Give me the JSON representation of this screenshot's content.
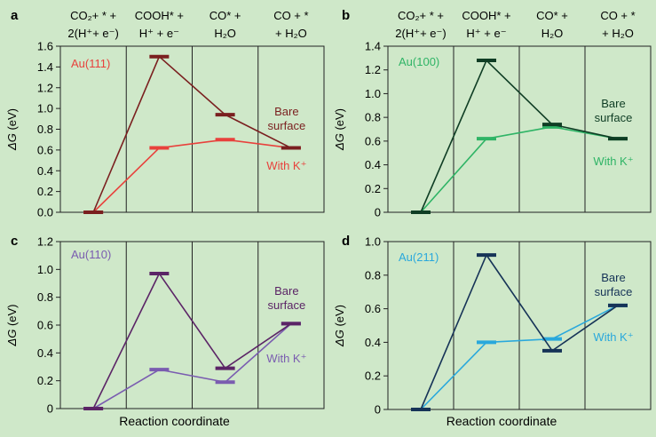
{
  "figure": {
    "step_headers": [
      {
        "line1": "CO₂+ * +",
        "line2": "2(H⁺+ e⁻)"
      },
      {
        "line1": "COOH* +",
        "line2": "H⁺ + e⁻"
      },
      {
        "line1": "CO* +",
        "line2": "H₂O"
      },
      {
        "line1": "CO + *",
        "line2": "+ H₂O"
      }
    ],
    "xlabel": "Reaction coordinate",
    "ylabel": "ΔG (eV)",
    "bare_label_line1": "Bare",
    "bare_label_line2": "surface",
    "k_label": "With K⁺"
  },
  "chart_data": [
    {
      "type": "line",
      "panel_letter": "a",
      "title": "Au(111)",
      "categories": [
        "CO₂ + * + 2(H⁺ + e⁻)",
        "COOH* + H⁺ + e⁻",
        "CO* + H₂O",
        "CO + * + H₂O"
      ],
      "ylim": [
        0,
        1.6
      ],
      "yticks": [
        0,
        0.2,
        0.4,
        0.6,
        0.8,
        1.0,
        1.2,
        1.4,
        1.6
      ],
      "ytick_labels": [
        "0.0",
        "0.2",
        "0.4",
        "0.6",
        "0.8",
        "1.0",
        "1.2",
        "1.4",
        "1.6"
      ],
      "series": [
        {
          "name": "Bare surface",
          "values": [
            0,
            1.5,
            0.94,
            0.62
          ],
          "color": "#7a1f1f"
        },
        {
          "name": "With K⁺",
          "values": [
            0,
            0.62,
            0.7,
            0.62
          ],
          "color": "#e8413c"
        }
      ],
      "title_color": "#e8413c"
    },
    {
      "type": "line",
      "panel_letter": "b",
      "title": "Au(100)",
      "categories": [
        "CO₂ + * + 2(H⁺ + e⁻)",
        "COOH* + H⁺ + e⁻",
        "CO* + H₂O",
        "CO + * + H₂O"
      ],
      "ylim": [
        0,
        1.4
      ],
      "yticks": [
        0,
        0.2,
        0.4,
        0.6,
        0.8,
        1.0,
        1.2,
        1.4
      ],
      "ytick_labels": [
        "0",
        "0.2",
        "0.4",
        "0.6",
        "0.8",
        "1.0",
        "1.2",
        "1.4"
      ],
      "series": [
        {
          "name": "Bare surface",
          "values": [
            0,
            1.28,
            0.74,
            0.62
          ],
          "color": "#0f3d24"
        },
        {
          "name": "With K⁺",
          "values": [
            0,
            0.62,
            0.72,
            0.62
          ],
          "color": "#2fb466"
        }
      ],
      "title_color": "#2fb466"
    },
    {
      "type": "line",
      "panel_letter": "c",
      "title": "Au(110)",
      "categories": [
        "CO₂ + * + 2(H⁺ + e⁻)",
        "COOH* + H⁺ + e⁻",
        "CO* + H₂O",
        "CO + * + H₂O"
      ],
      "ylim": [
        0,
        1.2
      ],
      "yticks": [
        0,
        0.2,
        0.4,
        0.6,
        0.8,
        1.0,
        1.2
      ],
      "ytick_labels": [
        "0",
        "0.2",
        "0.4",
        "0.6",
        "0.8",
        "1.0",
        "1.2"
      ],
      "series": [
        {
          "name": "Bare surface",
          "values": [
            0,
            0.97,
            0.29,
            0.61
          ],
          "color": "#5b2466"
        },
        {
          "name": "With K⁺",
          "values": [
            0,
            0.28,
            0.19,
            0.61
          ],
          "color": "#7a5cb0"
        }
      ],
      "title_color": "#7a5cb0"
    },
    {
      "type": "line",
      "panel_letter": "d",
      "title": "Au(211)",
      "categories": [
        "CO₂ + * + 2(H⁺ + e⁻)",
        "COOH* + H⁺ + e⁻",
        "CO* + H₂O",
        "CO + * + H₂O"
      ],
      "ylim": [
        0,
        1.0
      ],
      "yticks": [
        0,
        0.2,
        0.4,
        0.6,
        0.8,
        1.0
      ],
      "ytick_labels": [
        "0",
        "0.2",
        "0.4",
        "0.6",
        "0.8",
        "1.0"
      ],
      "series": [
        {
          "name": "Bare surface",
          "values": [
            0,
            0.92,
            0.35,
            0.62
          ],
          "color": "#163357"
        },
        {
          "name": "With K⁺",
          "values": [
            0,
            0.4,
            0.42,
            0.62
          ],
          "color": "#29a8dc"
        }
      ],
      "title_color": "#29a8dc"
    }
  ]
}
